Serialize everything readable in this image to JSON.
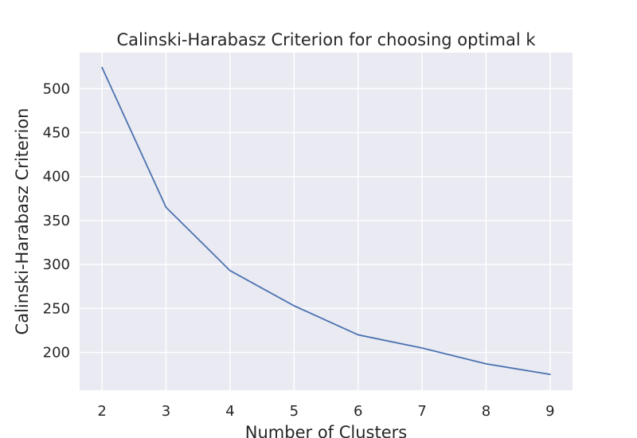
{
  "chart_data": {
    "type": "line",
    "title": "Calinski-Harabasz Criterion for choosing optimal k",
    "xlabel": "Number of Clusters",
    "ylabel": "Calinski-Harabasz Criterion",
    "x": [
      2,
      3,
      4,
      5,
      6,
      7,
      8,
      9
    ],
    "series": [
      {
        "values": [
          524,
          365,
          293,
          253,
          220,
          205,
          187,
          175
        ]
      }
    ],
    "xlim": [
      1.65,
      9.35
    ],
    "ylim": [
      157,
      541
    ],
    "xticks": [
      2,
      3,
      4,
      5,
      6,
      7,
      8,
      9
    ],
    "yticks": [
      200,
      250,
      300,
      350,
      400,
      450,
      500
    ],
    "grid": true,
    "colors": {
      "background": "#eaeaf2",
      "line": "#4c72b0",
      "grid": "#ffffff"
    }
  }
}
